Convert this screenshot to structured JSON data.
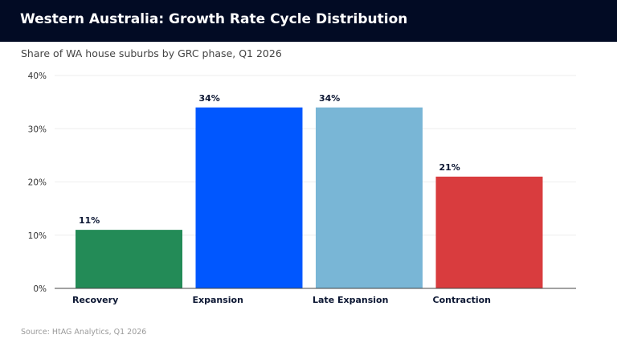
{
  "header": {
    "title": "Western Australia: Growth Rate Cycle Distribution"
  },
  "subtitle": "Share of WA house suburbs by GRC phase, Q1 2026",
  "source": "Source: HtAG Analytics, Q1 2026",
  "chart_data": {
    "type": "bar",
    "title": "Western Australia: Growth Rate Cycle Distribution",
    "subtitle": "Share of WA house suburbs by GRC phase, Q1 2026",
    "categories": [
      "Recovery",
      "Expansion",
      "Late Expansion",
      "Contraction"
    ],
    "values": [
      11,
      34,
      34,
      21
    ],
    "data_labels": [
      "11%",
      "34%",
      "34%",
      "21%"
    ],
    "colors": [
      "#238b57",
      "#0057ff",
      "#79b6d6",
      "#d93c3e"
    ],
    "ylim": [
      0,
      40
    ],
    "yticks": [
      0,
      10,
      20,
      30,
      40
    ],
    "ytick_labels": [
      "0%",
      "10%",
      "20%",
      "30%",
      "40%"
    ],
    "xlabel": "",
    "ylabel": "",
    "grid": true,
    "legend": "none"
  }
}
